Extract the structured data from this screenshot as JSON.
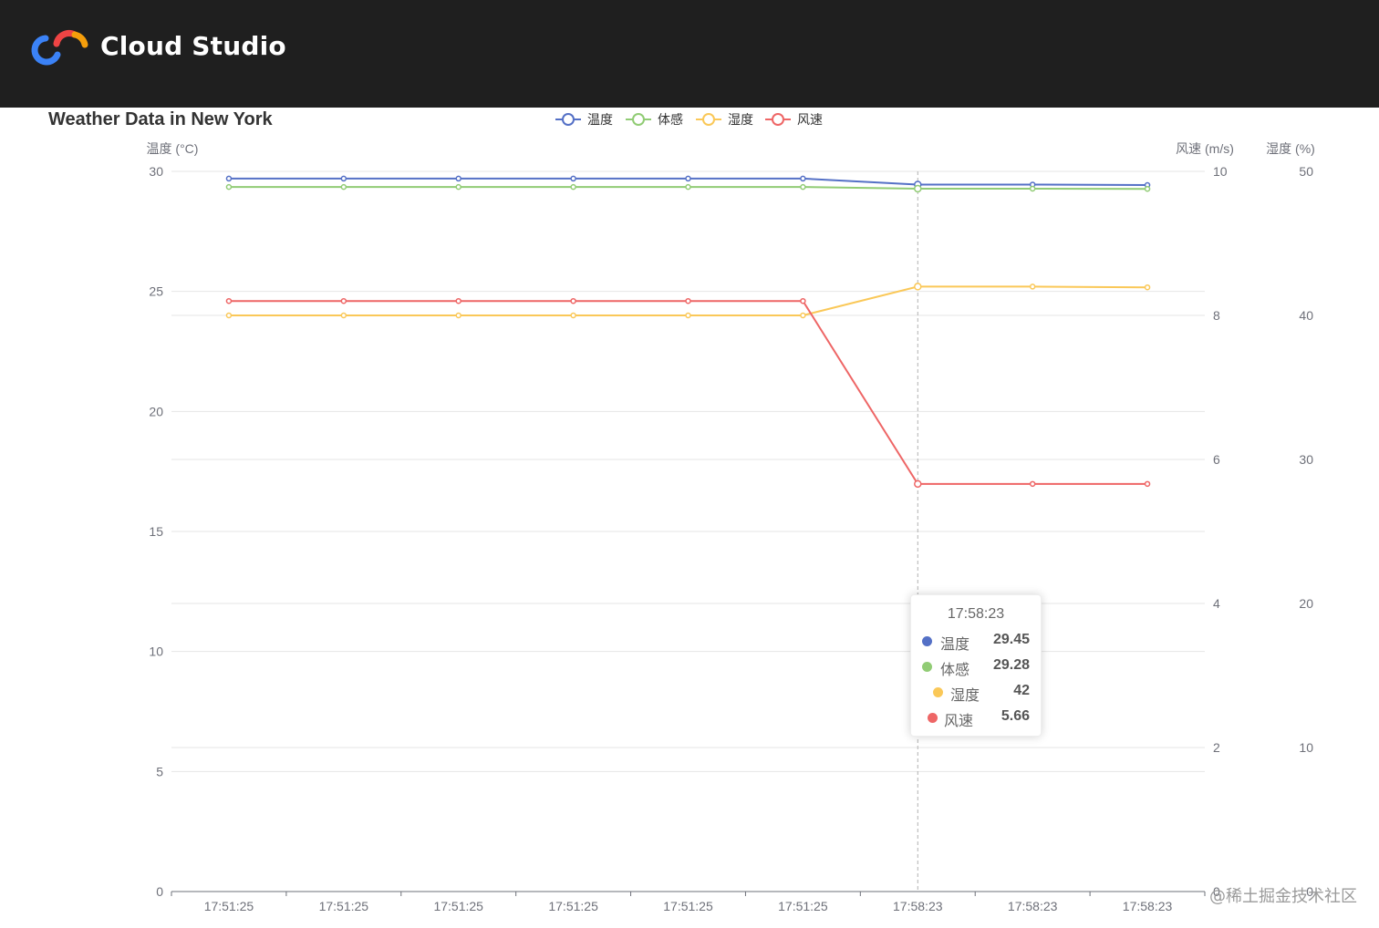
{
  "header": {
    "brand": "Cloud Studio",
    "colors": {
      "background": "#1f1f1f",
      "logo_blue": "#3b82f6",
      "logo_red": "#ef4444",
      "logo_orange": "#f59e0b"
    }
  },
  "watermark": "@稀土掘金技术社区",
  "chart_data": {
    "type": "line",
    "title": "Weather Data in New York",
    "categories": [
      "17:51:25",
      "17:51:25",
      "17:51:25",
      "17:51:25",
      "17:51:25",
      "17:51:25",
      "17:58:23",
      "17:58:23",
      "17:58:23"
    ],
    "legend": {
      "placement": "top-center"
    },
    "grid": true,
    "axes": {
      "y_left": {
        "name": "温度 (°C)",
        "min": 0,
        "max": 30,
        "ticks": [
          0,
          5,
          10,
          15,
          20,
          25,
          30
        ]
      },
      "y_right1": {
        "name": "风速 (m/s)",
        "min": 0,
        "max": 10,
        "ticks": [
          0,
          2,
          4,
          6,
          8,
          10
        ]
      },
      "y_right2": {
        "name": "湿度 (%)",
        "min": 0,
        "max": 50,
        "ticks": [
          0,
          10,
          20,
          30,
          40,
          50
        ]
      }
    },
    "series": [
      {
        "name": "温度",
        "axis": "y_left",
        "color": "#5470c6",
        "values": [
          29.7,
          29.7,
          29.7,
          29.7,
          29.7,
          29.7,
          29.45,
          29.45,
          29.43
        ]
      },
      {
        "name": "体感",
        "axis": "y_left",
        "color": "#91cc75",
        "values": [
          29.35,
          29.35,
          29.35,
          29.35,
          29.35,
          29.35,
          29.28,
          29.28,
          29.27
        ]
      },
      {
        "name": "湿度",
        "axis": "y_right2",
        "color": "#fac858",
        "values": [
          40,
          40,
          40,
          40,
          40,
          40,
          42,
          42,
          41.95
        ]
      },
      {
        "name": "风速",
        "axis": "y_right1",
        "color": "#ee6666",
        "values": [
          8.2,
          8.2,
          8.2,
          8.2,
          8.2,
          8.2,
          5.66,
          5.66,
          5.66
        ]
      }
    ],
    "hover_index": 6,
    "tooltip": {
      "title": "17:58:23",
      "rows": [
        {
          "name": "温度",
          "value": "29.45",
          "color": "#5470c6"
        },
        {
          "name": "体感",
          "value": "29.28",
          "color": "#91cc75"
        },
        {
          "name": "湿度",
          "value": "42",
          "color": "#fac858"
        },
        {
          "name": "风速",
          "value": "5.66",
          "color": "#ee6666"
        }
      ]
    }
  }
}
